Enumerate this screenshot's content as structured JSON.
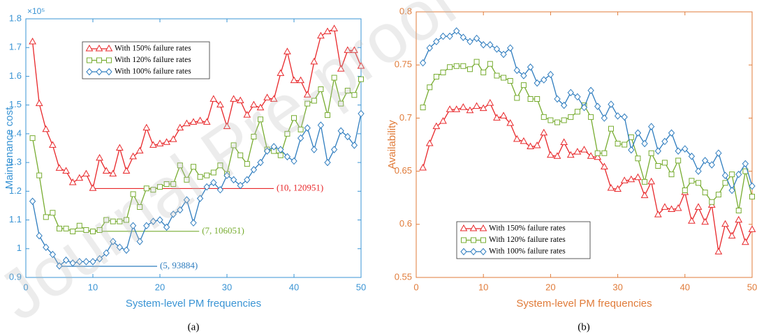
{
  "watermark": "Journal Pre-proof",
  "chart_data": [
    {
      "type": "line",
      "caption": "(a)",
      "xlabel": "System-level PM frequencies",
      "ylabel": "Maintenance cost",
      "y_multiplier": "×10⁵",
      "axis_color": "#3a94d4",
      "legend": "upper left",
      "xlim": [
        0,
        50
      ],
      "xticks": [
        0,
        10,
        20,
        30,
        40,
        50
      ],
      "ylim": [
        0.9,
        1.8
      ],
      "yticks": [
        0.9,
        1,
        1.1,
        1.2,
        1.3,
        1.4,
        1.5,
        1.6,
        1.7,
        1.8
      ],
      "x": [
        1,
        2,
        3,
        4,
        5,
        6,
        7,
        8,
        9,
        10,
        11,
        12,
        13,
        14,
        15,
        16,
        17,
        18,
        19,
        20,
        21,
        22,
        23,
        24,
        25,
        26,
        27,
        28,
        29,
        30,
        31,
        32,
        33,
        34,
        35,
        36,
        37,
        38,
        39,
        40,
        41,
        42,
        43,
        44,
        45,
        46,
        47,
        48,
        49,
        50
      ],
      "series": [
        {
          "name": "With 150% failure rates",
          "color": "#e8272a",
          "marker": "triangle",
          "values": [
            1.72,
            1.505,
            1.415,
            1.36,
            1.28,
            1.27,
            1.23,
            1.245,
            1.26,
            1.21,
            1.315,
            1.27,
            1.26,
            1.35,
            1.27,
            1.32,
            1.34,
            1.42,
            1.36,
            1.365,
            1.37,
            1.38,
            1.42,
            1.435,
            1.44,
            1.445,
            1.44,
            1.52,
            1.5,
            1.425,
            1.52,
            1.515,
            1.465,
            1.5,
            1.49,
            1.525,
            1.52,
            1.61,
            1.685,
            1.585,
            1.585,
            1.535,
            1.65,
            1.74,
            1.755,
            1.765,
            1.625,
            1.69,
            1.69,
            1.635
          ]
        },
        {
          "name": "With 120% failure rates",
          "color": "#77ac30",
          "marker": "square",
          "values": [
            1.385,
            1.255,
            1.11,
            1.125,
            1.07,
            1.07,
            1.06,
            1.08,
            1.065,
            1.06,
            1.065,
            1.1,
            1.095,
            1.095,
            1.1,
            1.19,
            1.145,
            1.21,
            1.205,
            1.215,
            1.225,
            1.225,
            1.29,
            1.24,
            1.285,
            1.25,
            1.255,
            1.265,
            1.29,
            1.26,
            1.36,
            1.325,
            1.295,
            1.39,
            1.45,
            1.345,
            1.34,
            1.325,
            1.4,
            1.455,
            1.415,
            1.505,
            1.515,
            1.555,
            1.465,
            1.595,
            1.505,
            1.55,
            1.535,
            1.59
          ]
        },
        {
          "name": "With 100% failure rates",
          "color": "#2f7dbf",
          "marker": "diamond",
          "values": [
            1.165,
            1.045,
            1.005,
            0.98,
            0.94,
            0.96,
            0.95,
            0.955,
            0.955,
            0.955,
            0.965,
            0.985,
            1.025,
            1.005,
            0.995,
            1.08,
            1.025,
            1.08,
            1.095,
            1.1,
            1.075,
            1.12,
            1.135,
            1.17,
            1.09,
            1.175,
            1.215,
            1.23,
            1.205,
            1.255,
            1.24,
            1.22,
            1.24,
            1.275,
            1.3,
            1.34,
            1.355,
            1.345,
            1.32,
            1.305,
            1.385,
            1.42,
            1.345,
            1.43,
            1.3,
            1.345,
            1.41,
            1.39,
            1.36,
            1.47
          ]
        }
      ],
      "annotations": [
        {
          "text": "(10, 120951)",
          "x": 10,
          "y": 1.20951,
          "color": "#e8272a"
        },
        {
          "text": "(7, 106051)",
          "x": 7,
          "y": 1.06051,
          "color": "#77ac30"
        },
        {
          "text": "(5, 93884)",
          "x": 5,
          "y": 0.93884,
          "color": "#2f7dbf"
        }
      ]
    },
    {
      "type": "line",
      "caption": "(b)",
      "xlabel": "System-level PM frequencies",
      "ylabel": "Availability",
      "axis_color": "#e07b39",
      "legend": "lower left",
      "xlim": [
        0,
        50
      ],
      "xticks": [
        0,
        10,
        20,
        30,
        40,
        50
      ],
      "ylim": [
        0.55,
        0.8
      ],
      "yticks": [
        0.55,
        0.6,
        0.65,
        0.7,
        0.75,
        0.8
      ],
      "x": [
        1,
        2,
        3,
        4,
        5,
        6,
        7,
        8,
        9,
        10,
        11,
        12,
        13,
        14,
        15,
        16,
        17,
        18,
        19,
        20,
        21,
        22,
        23,
        24,
        25,
        26,
        27,
        28,
        29,
        30,
        31,
        32,
        33,
        34,
        35,
        36,
        37,
        38,
        39,
        40,
        41,
        42,
        43,
        44,
        45,
        46,
        47,
        48,
        49,
        50
      ],
      "series": [
        {
          "name": "With 150% failure rates",
          "color": "#e8272a",
          "marker": "triangle",
          "values": [
            0.653,
            0.676,
            0.692,
            0.697,
            0.708,
            0.708,
            0.71,
            0.707,
            0.711,
            0.709,
            0.714,
            0.7,
            0.702,
            0.695,
            0.68,
            0.678,
            0.673,
            0.674,
            0.686,
            0.665,
            0.664,
            0.677,
            0.665,
            0.668,
            0.67,
            0.664,
            0.663,
            0.654,
            0.634,
            0.633,
            0.641,
            0.642,
            0.644,
            0.627,
            0.64,
            0.609,
            0.616,
            0.614,
            0.615,
            0.63,
            0.603,
            0.616,
            0.602,
            0.618,
            0.574,
            0.6,
            0.589,
            0.604,
            0.583,
            0.595
          ]
        },
        {
          "name": "With 120% failure rates",
          "color": "#77ac30",
          "marker": "square",
          "values": [
            0.71,
            0.729,
            0.739,
            0.743,
            0.748,
            0.749,
            0.749,
            0.746,
            0.753,
            0.743,
            0.751,
            0.74,
            0.738,
            0.735,
            0.719,
            0.731,
            0.718,
            0.718,
            0.701,
            0.698,
            0.696,
            0.698,
            0.701,
            0.706,
            0.712,
            0.701,
            0.667,
            0.667,
            0.69,
            0.676,
            0.675,
            0.682,
            0.662,
            0.64,
            0.667,
            0.655,
            0.658,
            0.647,
            0.66,
            0.632,
            0.641,
            0.639,
            0.63,
            0.621,
            0.628,
            0.639,
            0.647,
            0.613,
            0.65,
            0.626
          ]
        },
        {
          "name": "With 100% failure rates",
          "color": "#2f7dbf",
          "marker": "diamond",
          "values": [
            0.752,
            0.766,
            0.772,
            0.777,
            0.777,
            0.782,
            0.776,
            0.772,
            0.775,
            0.769,
            0.769,
            0.765,
            0.76,
            0.766,
            0.745,
            0.74,
            0.748,
            0.733,
            0.736,
            0.741,
            0.718,
            0.712,
            0.724,
            0.72,
            0.71,
            0.726,
            0.711,
            0.7,
            0.713,
            0.702,
            0.701,
            0.67,
            0.686,
            0.676,
            0.692,
            0.669,
            0.678,
            0.686,
            0.669,
            0.671,
            0.664,
            0.65,
            0.66,
            0.656,
            0.667,
            0.646,
            0.632,
            0.647,
            0.657,
            0.636
          ]
        }
      ]
    }
  ]
}
